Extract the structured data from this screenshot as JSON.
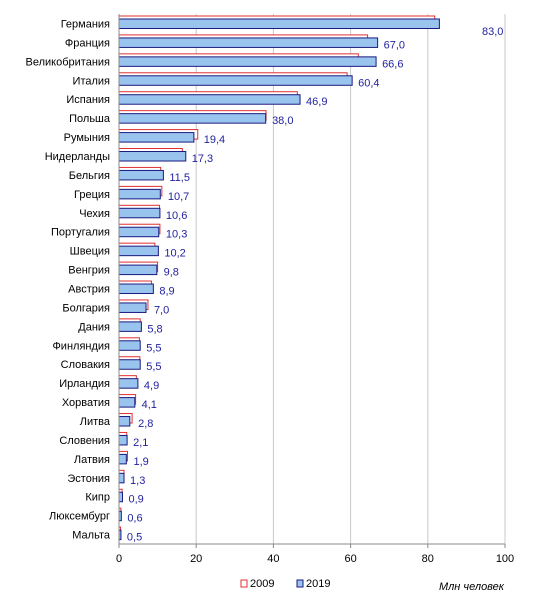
{
  "chart_data": {
    "type": "bar",
    "orientation": "horizontal",
    "categories": [
      "Германия",
      "Франция",
      "Великобритания",
      "Италия",
      "Испания",
      "Польша",
      "Румыния",
      "Нидерланды",
      "Бельгия",
      "Греция",
      "Чехия",
      "Португалия",
      "Швеция",
      "Венгрия",
      "Австрия",
      "Болгария",
      "Дания",
      "Финляндия",
      "Словакия",
      "Ирландия",
      "Хорватия",
      "Литва",
      "Словения",
      "Латвия",
      "Эстония",
      "Кипр",
      "Люксембург",
      "Мальта"
    ],
    "series": [
      {
        "name": "2009",
        "color": "#e03030",
        "fill": "#ffffff",
        "values": [
          81.8,
          64.4,
          62.0,
          59.1,
          46.2,
          38.1,
          20.4,
          16.4,
          10.8,
          11.1,
          10.5,
          10.6,
          9.3,
          10.0,
          8.4,
          7.5,
          5.5,
          5.3,
          5.4,
          4.5,
          4.3,
          3.4,
          2.0,
          2.2,
          1.3,
          0.8,
          0.5,
          0.4
        ]
      },
      {
        "name": "2019",
        "color": "#1a1a80",
        "fill": "#99c4ee",
        "values": [
          83.0,
          67.0,
          66.6,
          60.4,
          46.9,
          38.0,
          19.4,
          17.3,
          11.5,
          10.7,
          10.6,
          10.3,
          10.2,
          9.8,
          8.9,
          7.0,
          5.8,
          5.5,
          5.5,
          4.9,
          4.1,
          2.8,
          2.1,
          1.9,
          1.3,
          0.9,
          0.6,
          0.5
        ]
      }
    ],
    "value_labels": [
      "83,0",
      "67,0",
      "66,6",
      "60,4",
      "46,9",
      "38,0",
      "19,4",
      "17,3",
      "11,5",
      "10,7",
      "10,6",
      "10,3",
      "10,2",
      "9,8",
      "8,9",
      "7,0",
      "5,8",
      "5,5",
      "5,5",
      "4,9",
      "4,1",
      "2,8",
      "2,1",
      "1,9",
      "1,3",
      "0,9",
      "0,6",
      "0,5"
    ],
    "xlim": [
      0,
      100
    ],
    "xticks": [
      0,
      20,
      40,
      60,
      80,
      100
    ],
    "xlabel": "Млн  человек",
    "grid": true,
    "gridlines_color": "#c8c8c8",
    "legend_placement": "bottom"
  }
}
